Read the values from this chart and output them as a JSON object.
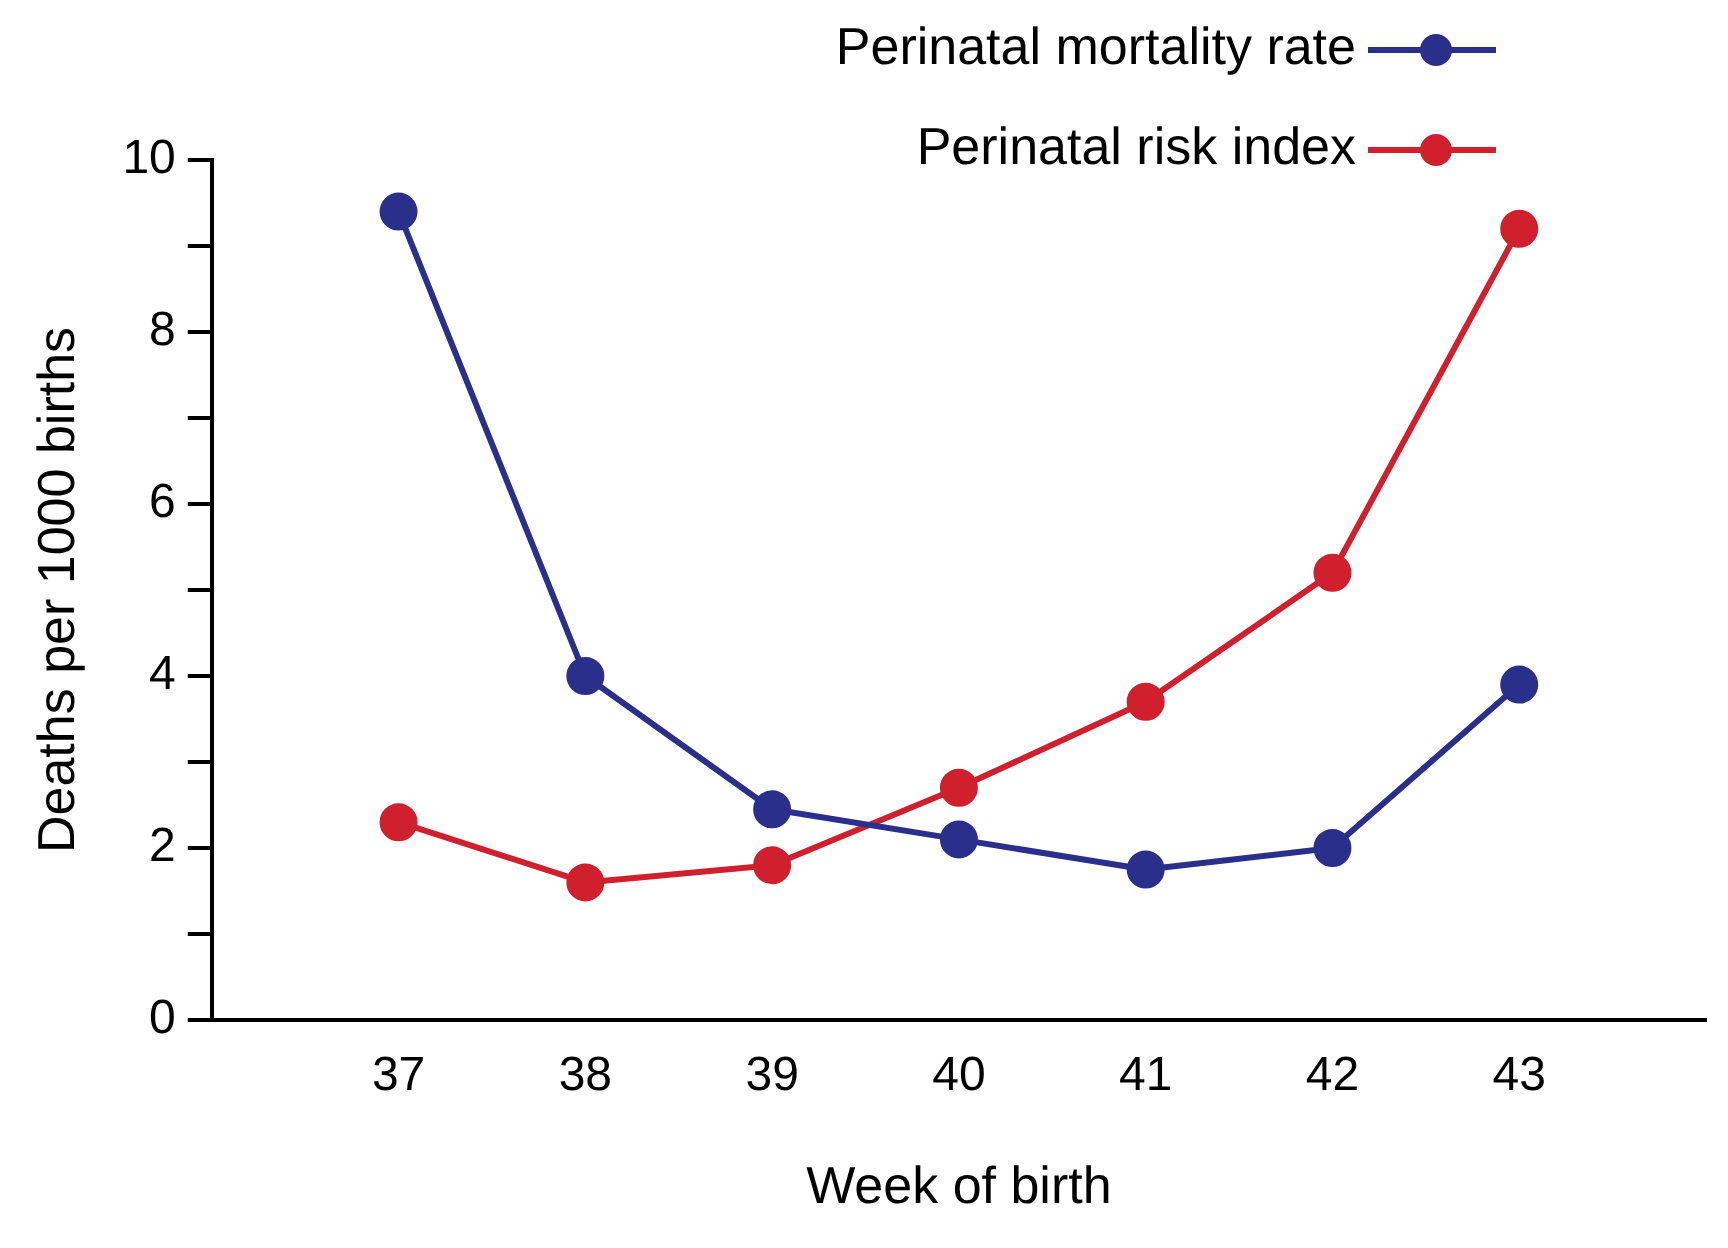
{
  "chart_data": {
    "type": "line",
    "xlabel": "Week of birth",
    "ylabel": "Deaths per 1000 births",
    "x": [
      37,
      38,
      39,
      40,
      41,
      42,
      43
    ],
    "series": [
      {
        "name": "Perinatal mortality rate",
        "color": "#2b2f8c",
        "values": [
          9.4,
          4.0,
          2.45,
          2.1,
          1.75,
          2.0,
          3.9
        ]
      },
      {
        "name": "Perinatal risk index",
        "color": "#d0202e",
        "values": [
          2.3,
          1.6,
          1.8,
          2.7,
          3.7,
          5.2,
          9.2
        ]
      }
    ],
    "xlim": [
      36,
      44
    ],
    "xticks": [
      37,
      38,
      39,
      40,
      41,
      42,
      43
    ],
    "ylim": [
      0,
      10
    ],
    "yticks": [
      0,
      {
        "value": 1,
        "label": null
      },
      2,
      {
        "value": 3,
        "label": null
      },
      4,
      {
        "value": 5,
        "label": null
      },
      6,
      {
        "value": 7,
        "label": null
      },
      8,
      {
        "value": 9,
        "label": null
      },
      10
    ],
    "grid": false,
    "legend": "top right",
    "marker": "circle",
    "line_style": "solid"
  }
}
